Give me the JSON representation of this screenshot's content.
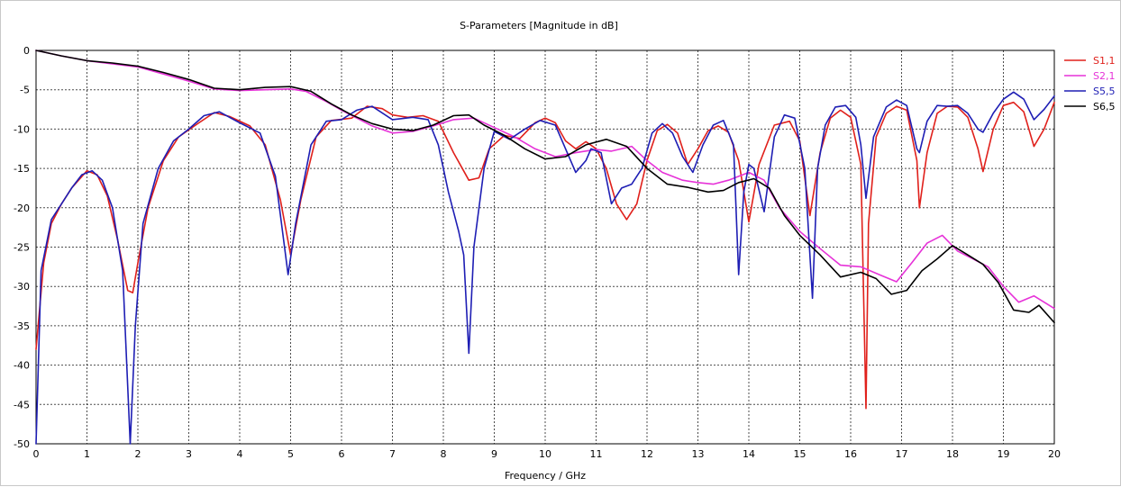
{
  "chart_data": {
    "type": "line",
    "title": "S-Parameters [Magnitude in dB]",
    "xlabel": "Frequency / GHz",
    "ylabel": "",
    "xlim": [
      0,
      20
    ],
    "ylim": [
      -50,
      0
    ],
    "xticks": [
      0,
      1,
      2,
      3,
      4,
      5,
      6,
      7,
      8,
      9,
      10,
      11,
      12,
      13,
      14,
      15,
      16,
      17,
      18,
      19,
      20
    ],
    "yticks": [
      0,
      -5,
      -10,
      -15,
      -20,
      -25,
      -30,
      -35,
      -40,
      -45,
      -50
    ],
    "grid": true,
    "legend_position": "top-right",
    "series": [
      {
        "name": "S1,1",
        "color": "#e0201b",
        "points": [
          [
            0,
            -38
          ],
          [
            0.15,
            -27
          ],
          [
            0.3,
            -22
          ],
          [
            0.5,
            -19.5
          ],
          [
            0.7,
            -17.5
          ],
          [
            1.0,
            -15.3
          ],
          [
            1.2,
            -15.8
          ],
          [
            1.4,
            -18.5
          ],
          [
            1.6,
            -24
          ],
          [
            1.8,
            -30.5
          ],
          [
            1.9,
            -30.8
          ],
          [
            2.0,
            -27
          ],
          [
            2.2,
            -20
          ],
          [
            2.5,
            -14
          ],
          [
            2.8,
            -11
          ],
          [
            3.2,
            -9.2
          ],
          [
            3.5,
            -7.9
          ],
          [
            3.8,
            -8.4
          ],
          [
            4.2,
            -9.6
          ],
          [
            4.5,
            -12
          ],
          [
            4.8,
            -19
          ],
          [
            5.0,
            -26
          ],
          [
            5.2,
            -19
          ],
          [
            5.5,
            -11
          ],
          [
            5.8,
            -8.9
          ],
          [
            6.2,
            -8.6
          ],
          [
            6.5,
            -7.1
          ],
          [
            6.8,
            -7.4
          ],
          [
            7.0,
            -8.2
          ],
          [
            7.3,
            -8.5
          ],
          [
            7.6,
            -8.3
          ],
          [
            7.9,
            -9.0
          ],
          [
            8.2,
            -13
          ],
          [
            8.5,
            -16.5
          ],
          [
            8.7,
            -16.2
          ],
          [
            8.9,
            -12.5
          ],
          [
            9.2,
            -10.8
          ],
          [
            9.5,
            -11.2
          ],
          [
            9.8,
            -9.2
          ],
          [
            10.0,
            -8.6
          ],
          [
            10.2,
            -9.2
          ],
          [
            10.4,
            -11.5
          ],
          [
            10.6,
            -12.5
          ],
          [
            10.8,
            -11.6
          ],
          [
            11.0,
            -12.5
          ],
          [
            11.2,
            -15
          ],
          [
            11.4,
            -19.5
          ],
          [
            11.6,
            -21.5
          ],
          [
            11.8,
            -19.5
          ],
          [
            12.0,
            -14
          ],
          [
            12.2,
            -10.2
          ],
          [
            12.4,
            -9.4
          ],
          [
            12.6,
            -10.5
          ],
          [
            12.8,
            -14.5
          ],
          [
            13.0,
            -12.5
          ],
          [
            13.2,
            -10.2
          ],
          [
            13.4,
            -9.6
          ],
          [
            13.6,
            -10.4
          ],
          [
            13.8,
            -14
          ],
          [
            14.0,
            -21.8
          ],
          [
            14.2,
            -14.5
          ],
          [
            14.5,
            -9.5
          ],
          [
            14.8,
            -9.0
          ],
          [
            15.0,
            -11.5
          ],
          [
            15.2,
            -21
          ],
          [
            15.4,
            -13
          ],
          [
            15.6,
            -8.6
          ],
          [
            15.8,
            -7.6
          ],
          [
            16.0,
            -8.5
          ],
          [
            16.2,
            -14.5
          ],
          [
            16.3,
            -45.5
          ],
          [
            16.35,
            -22
          ],
          [
            16.5,
            -11
          ],
          [
            16.7,
            -8
          ],
          [
            16.9,
            -7.1
          ],
          [
            17.1,
            -7.6
          ],
          [
            17.3,
            -14
          ],
          [
            17.35,
            -20
          ],
          [
            17.5,
            -13
          ],
          [
            17.7,
            -8
          ],
          [
            17.9,
            -7.1
          ],
          [
            18.1,
            -7.2
          ],
          [
            18.3,
            -8.5
          ],
          [
            18.5,
            -12.5
          ],
          [
            18.6,
            -15.4
          ],
          [
            18.8,
            -10
          ],
          [
            19.0,
            -7
          ],
          [
            19.2,
            -6.6
          ],
          [
            19.4,
            -7.8
          ],
          [
            19.6,
            -12.2
          ],
          [
            19.8,
            -10
          ],
          [
            20.0,
            -6.6
          ]
        ]
      },
      {
        "name": "S2,1",
        "color": "#e632d8",
        "points": [
          [
            0,
            0
          ],
          [
            0.5,
            -0.7
          ],
          [
            1.0,
            -1.3
          ],
          [
            1.5,
            -1.7
          ],
          [
            2.0,
            -2.1
          ],
          [
            2.5,
            -3
          ],
          [
            3.0,
            -3.9
          ],
          [
            3.5,
            -4.9
          ],
          [
            4.0,
            -5.1
          ],
          [
            4.5,
            -5.0
          ],
          [
            5.0,
            -4.9
          ],
          [
            5.3,
            -5.2
          ],
          [
            5.7,
            -6.5
          ],
          [
            6.0,
            -7.6
          ],
          [
            6.3,
            -8.6
          ],
          [
            6.6,
            -9.6
          ],
          [
            7.0,
            -10.5
          ],
          [
            7.4,
            -10.3
          ],
          [
            7.8,
            -9.6
          ],
          [
            8.2,
            -8.8
          ],
          [
            8.6,
            -8.6
          ],
          [
            9.0,
            -9.8
          ],
          [
            9.4,
            -11.0
          ],
          [
            9.8,
            -12.5
          ],
          [
            10.2,
            -13.5
          ],
          [
            10.6,
            -13.0
          ],
          [
            11.0,
            -12.6
          ],
          [
            11.3,
            -12.8
          ],
          [
            11.7,
            -12.2
          ],
          [
            12.0,
            -14
          ],
          [
            12.3,
            -15.5
          ],
          [
            12.7,
            -16.5
          ],
          [
            13.0,
            -16.8
          ],
          [
            13.3,
            -17.0
          ],
          [
            13.6,
            -16.5
          ],
          [
            14.0,
            -15.5
          ],
          [
            14.3,
            -16.5
          ],
          [
            14.6,
            -20
          ],
          [
            15.0,
            -23
          ],
          [
            15.4,
            -25.2
          ],
          [
            15.8,
            -27.3
          ],
          [
            16.2,
            -27.5
          ],
          [
            16.6,
            -28.6
          ],
          [
            16.9,
            -29.4
          ],
          [
            17.2,
            -27
          ],
          [
            17.5,
            -24.5
          ],
          [
            17.8,
            -23.5
          ],
          [
            18.1,
            -25.5
          ],
          [
            18.4,
            -26.5
          ],
          [
            18.7,
            -27.5
          ],
          [
            19.0,
            -30
          ],
          [
            19.3,
            -32
          ],
          [
            19.6,
            -31.2
          ],
          [
            20.0,
            -32.8
          ]
        ]
      },
      {
        "name": "S5,5",
        "color": "#1e1eb4",
        "points": [
          [
            0,
            -50
          ],
          [
            0.1,
            -28
          ],
          [
            0.3,
            -21.5
          ],
          [
            0.5,
            -19.5
          ],
          [
            0.7,
            -17.5
          ],
          [
            0.9,
            -15.8
          ],
          [
            1.1,
            -15.3
          ],
          [
            1.3,
            -16.5
          ],
          [
            1.5,
            -20
          ],
          [
            1.7,
            -28
          ],
          [
            1.85,
            -50
          ],
          [
            1.95,
            -35
          ],
          [
            2.1,
            -22
          ],
          [
            2.4,
            -15
          ],
          [
            2.7,
            -11.5
          ],
          [
            3.0,
            -10.0
          ],
          [
            3.3,
            -8.3
          ],
          [
            3.6,
            -7.8
          ],
          [
            4.0,
            -9.2
          ],
          [
            4.4,
            -10.5
          ],
          [
            4.7,
            -16
          ],
          [
            4.95,
            -28.5
          ],
          [
            5.1,
            -22
          ],
          [
            5.4,
            -12
          ],
          [
            5.7,
            -9.0
          ],
          [
            6.0,
            -8.8
          ],
          [
            6.3,
            -7.6
          ],
          [
            6.6,
            -7.1
          ],
          [
            7.0,
            -8.8
          ],
          [
            7.4,
            -8.5
          ],
          [
            7.7,
            -8.8
          ],
          [
            7.9,
            -12
          ],
          [
            8.1,
            -18
          ],
          [
            8.3,
            -23
          ],
          [
            8.4,
            -26
          ],
          [
            8.5,
            -38.5
          ],
          [
            8.6,
            -25
          ],
          [
            8.8,
            -15
          ],
          [
            9.0,
            -10.3
          ],
          [
            9.3,
            -11.3
          ],
          [
            9.6,
            -10.0
          ],
          [
            9.9,
            -8.9
          ],
          [
            10.2,
            -9.5
          ],
          [
            10.4,
            -12.5
          ],
          [
            10.6,
            -15.5
          ],
          [
            10.8,
            -14
          ],
          [
            10.9,
            -12.5
          ],
          [
            11.1,
            -13
          ],
          [
            11.3,
            -19.5
          ],
          [
            11.5,
            -17.5
          ],
          [
            11.7,
            -17
          ],
          [
            11.9,
            -15
          ],
          [
            12.1,
            -10.5
          ],
          [
            12.3,
            -9.3
          ],
          [
            12.5,
            -10.5
          ],
          [
            12.7,
            -13.5
          ],
          [
            12.9,
            -15.5
          ],
          [
            13.1,
            -12
          ],
          [
            13.3,
            -9.5
          ],
          [
            13.5,
            -8.9
          ],
          [
            13.7,
            -12
          ],
          [
            13.8,
            -28.5
          ],
          [
            13.9,
            -18
          ],
          [
            14.0,
            -14.5
          ],
          [
            14.1,
            -15
          ],
          [
            14.3,
            -20.5
          ],
          [
            14.5,
            -11
          ],
          [
            14.7,
            -8.2
          ],
          [
            14.9,
            -8.6
          ],
          [
            15.1,
            -15
          ],
          [
            15.25,
            -31.5
          ],
          [
            15.35,
            -15
          ],
          [
            15.5,
            -9.5
          ],
          [
            15.7,
            -7.2
          ],
          [
            15.9,
            -7.0
          ],
          [
            16.1,
            -8.5
          ],
          [
            16.2,
            -12
          ],
          [
            16.3,
            -18.8
          ],
          [
            16.45,
            -11
          ],
          [
            16.7,
            -7.2
          ],
          [
            16.9,
            -6.3
          ],
          [
            17.1,
            -7.0
          ],
          [
            17.3,
            -12.5
          ],
          [
            17.35,
            -13
          ],
          [
            17.5,
            -9
          ],
          [
            17.7,
            -7
          ],
          [
            17.9,
            -7.1
          ],
          [
            18.1,
            -7.0
          ],
          [
            18.3,
            -8
          ],
          [
            18.5,
            -10
          ],
          [
            18.6,
            -10.4
          ],
          [
            18.8,
            -8
          ],
          [
            19.0,
            -6.2
          ],
          [
            19.2,
            -5.3
          ],
          [
            19.4,
            -6.2
          ],
          [
            19.6,
            -8.8
          ],
          [
            19.8,
            -7.5
          ],
          [
            20.0,
            -5.8
          ]
        ]
      },
      {
        "name": "S6,5",
        "color": "#000000",
        "points": [
          [
            0,
            0
          ],
          [
            0.5,
            -0.7
          ],
          [
            1.0,
            -1.3
          ],
          [
            1.5,
            -1.6
          ],
          [
            2.0,
            -2.0
          ],
          [
            2.5,
            -2.8
          ],
          [
            3.0,
            -3.7
          ],
          [
            3.5,
            -4.8
          ],
          [
            4.0,
            -5.0
          ],
          [
            4.5,
            -4.7
          ],
          [
            5.0,
            -4.6
          ],
          [
            5.4,
            -5.2
          ],
          [
            5.8,
            -6.8
          ],
          [
            6.2,
            -8.2
          ],
          [
            6.6,
            -9.3
          ],
          [
            7.0,
            -10.0
          ],
          [
            7.4,
            -10.2
          ],
          [
            7.8,
            -9.5
          ],
          [
            8.2,
            -8.3
          ],
          [
            8.5,
            -8.2
          ],
          [
            8.8,
            -9.5
          ],
          [
            9.2,
            -10.8
          ],
          [
            9.6,
            -12.5
          ],
          [
            10.0,
            -13.8
          ],
          [
            10.4,
            -13.5
          ],
          [
            10.8,
            -12.0
          ],
          [
            11.2,
            -11.3
          ],
          [
            11.6,
            -12.2
          ],
          [
            12.0,
            -15.0
          ],
          [
            12.4,
            -17.0
          ],
          [
            12.8,
            -17.4
          ],
          [
            13.2,
            -18.0
          ],
          [
            13.5,
            -17.8
          ],
          [
            13.8,
            -16.8
          ],
          [
            14.1,
            -16.3
          ],
          [
            14.4,
            -17.5
          ],
          [
            14.7,
            -21
          ],
          [
            15.0,
            -23.5
          ],
          [
            15.4,
            -26
          ],
          [
            15.8,
            -28.8
          ],
          [
            16.2,
            -28.2
          ],
          [
            16.5,
            -29
          ],
          [
            16.8,
            -31
          ],
          [
            17.1,
            -30.5
          ],
          [
            17.4,
            -28
          ],
          [
            17.7,
            -26.5
          ],
          [
            18.0,
            -24.8
          ],
          [
            18.3,
            -26
          ],
          [
            18.6,
            -27.2
          ],
          [
            18.9,
            -29.5
          ],
          [
            19.2,
            -33
          ],
          [
            19.5,
            -33.3
          ],
          [
            19.7,
            -32.4
          ],
          [
            20.0,
            -34.6
          ]
        ]
      }
    ]
  }
}
